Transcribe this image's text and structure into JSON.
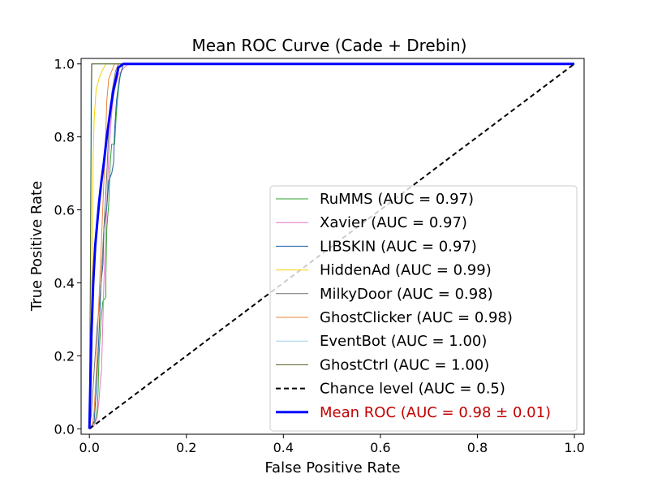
{
  "chart_data": {
    "type": "line",
    "title": "Mean ROC Curve (Cade + Drebin)",
    "xlabel": "False Positive Rate",
    "ylabel": "True Positive Rate",
    "xlim": [
      -0.017,
      1.02
    ],
    "ylim": [
      -0.015,
      1.015
    ],
    "x_ticks": [
      0.0,
      0.2,
      0.4,
      0.6,
      0.8,
      1.0
    ],
    "y_ticks": [
      0.0,
      0.2,
      0.4,
      0.6,
      0.8,
      1.0
    ],
    "x_tick_labels": [
      "0.0",
      "0.2",
      "0.4",
      "0.6",
      "0.8",
      "1.0"
    ],
    "y_tick_labels": [
      "0.0",
      "0.2",
      "0.4",
      "0.6",
      "0.8",
      "1.0"
    ],
    "legend_position": "lower-right",
    "series": [
      {
        "name": "RuMMS (AUC = 0.97)",
        "color": "#2ca02c",
        "width": 1,
        "points": [
          [
            0,
            0
          ],
          [
            0.006,
            0.01
          ],
          [
            0.012,
            0.02
          ],
          [
            0.016,
            0.05
          ],
          [
            0.018,
            0.1
          ],
          [
            0.02,
            0.2
          ],
          [
            0.024,
            0.3
          ],
          [
            0.028,
            0.35
          ],
          [
            0.034,
            0.36
          ],
          [
            0.034,
            0.42
          ],
          [
            0.036,
            0.55
          ],
          [
            0.04,
            0.62
          ],
          [
            0.043,
            0.73
          ],
          [
            0.046,
            0.78
          ],
          [
            0.052,
            0.78
          ],
          [
            0.056,
            0.87
          ],
          [
            0.06,
            0.93
          ],
          [
            0.064,
            0.97
          ],
          [
            0.07,
            1.0
          ],
          [
            1.0,
            1.0
          ]
        ]
      },
      {
        "name": "Xavier (AUC = 0.97)",
        "color": "#e377c2",
        "width": 1,
        "points": [
          [
            0,
            0
          ],
          [
            0.01,
            0.01
          ],
          [
            0.016,
            0.03
          ],
          [
            0.02,
            0.08
          ],
          [
            0.022,
            0.12
          ],
          [
            0.025,
            0.16
          ],
          [
            0.028,
            0.3
          ],
          [
            0.03,
            0.4
          ],
          [
            0.034,
            0.55
          ],
          [
            0.037,
            0.65
          ],
          [
            0.04,
            0.75
          ],
          [
            0.045,
            0.85
          ],
          [
            0.05,
            0.92
          ],
          [
            0.06,
            0.97
          ],
          [
            0.072,
            0.99
          ],
          [
            0.08,
            1.0
          ],
          [
            1.0,
            1.0
          ]
        ]
      },
      {
        "name": "LIBSKIN (AUC = 0.97)",
        "color": "#1f5fa8",
        "width": 1,
        "points": [
          [
            0,
            0
          ],
          [
            0.01,
            0.02
          ],
          [
            0.014,
            0.1
          ],
          [
            0.018,
            0.2
          ],
          [
            0.022,
            0.33
          ],
          [
            0.024,
            0.4
          ],
          [
            0.028,
            0.45
          ],
          [
            0.03,
            0.55
          ],
          [
            0.036,
            0.61
          ],
          [
            0.04,
            0.68
          ],
          [
            0.046,
            0.7
          ],
          [
            0.05,
            0.73
          ],
          [
            0.052,
            0.82
          ],
          [
            0.056,
            0.9
          ],
          [
            0.062,
            0.96
          ],
          [
            0.07,
            1.0
          ],
          [
            1.0,
            1.0
          ]
        ]
      },
      {
        "name": "HiddenAd (AUC = 0.99)",
        "color": "#f5d000",
        "width": 1,
        "points": [
          [
            0,
            0
          ],
          [
            0.002,
            0.1
          ],
          [
            0.004,
            0.3
          ],
          [
            0.006,
            0.55
          ],
          [
            0.008,
            0.75
          ],
          [
            0.01,
            0.85
          ],
          [
            0.014,
            0.93
          ],
          [
            0.02,
            0.96
          ],
          [
            0.026,
            0.98
          ],
          [
            0.034,
            1.0
          ],
          [
            1.0,
            1.0
          ]
        ]
      },
      {
        "name": "MilkyDoor (AUC = 0.98)",
        "color": "#707070",
        "width": 1,
        "points": [
          [
            0,
            0
          ],
          [
            0.004,
            0.04
          ],
          [
            0.008,
            0.12
          ],
          [
            0.012,
            0.2
          ],
          [
            0.016,
            0.28
          ],
          [
            0.02,
            0.33
          ],
          [
            0.024,
            0.4
          ],
          [
            0.028,
            0.5
          ],
          [
            0.032,
            0.6
          ],
          [
            0.036,
            0.7
          ],
          [
            0.04,
            0.82
          ],
          [
            0.046,
            0.92
          ],
          [
            0.054,
            0.98
          ],
          [
            0.06,
            1.0
          ],
          [
            1.0,
            1.0
          ]
        ]
      },
      {
        "name": "GhostClicker (AUC = 0.98)",
        "color": "#e8853a",
        "width": 1,
        "points": [
          [
            0,
            0
          ],
          [
            0.006,
            0.01
          ],
          [
            0.01,
            0.05
          ],
          [
            0.014,
            0.15
          ],
          [
            0.018,
            0.3
          ],
          [
            0.022,
            0.42
          ],
          [
            0.026,
            0.55
          ],
          [
            0.03,
            0.68
          ],
          [
            0.034,
            0.82
          ],
          [
            0.036,
            0.9
          ],
          [
            0.04,
            0.96
          ],
          [
            0.046,
            0.98
          ],
          [
            0.052,
            1.0
          ],
          [
            1.0,
            1.0
          ]
        ]
      },
      {
        "name": "EventBot (AUC = 1.00)",
        "color": "#9ed4ec",
        "width": 1,
        "points": [
          [
            0,
            0
          ],
          [
            0.002,
            0.5
          ],
          [
            0.003,
            0.9
          ],
          [
            0.004,
            1.0
          ],
          [
            1.0,
            1.0
          ]
        ]
      },
      {
        "name": "GhostCtrl (AUC = 1.00)",
        "color": "#4a5a1e",
        "width": 1,
        "points": [
          [
            0,
            0
          ],
          [
            0.002,
            0.4
          ],
          [
            0.004,
            0.9
          ],
          [
            0.005,
            1.0
          ],
          [
            1.0,
            1.0
          ]
        ]
      },
      {
        "name": "Chance level (AUC = 0.5)",
        "color": "#000000",
        "width": 2,
        "dashed": true,
        "points": [
          [
            0,
            0
          ],
          [
            1,
            1
          ]
        ]
      },
      {
        "name": "Mean ROC (AUC = 0.98 ± 0.01)",
        "color": "#0000ff",
        "width": 3,
        "label_color": "#c00000",
        "points": [
          [
            0,
            0
          ],
          [
            0.004,
            0.25
          ],
          [
            0.008,
            0.4
          ],
          [
            0.012,
            0.5
          ],
          [
            0.016,
            0.56
          ],
          [
            0.02,
            0.62
          ],
          [
            0.025,
            0.68
          ],
          [
            0.03,
            0.73
          ],
          [
            0.035,
            0.79
          ],
          [
            0.04,
            0.84
          ],
          [
            0.045,
            0.89
          ],
          [
            0.05,
            0.93
          ],
          [
            0.055,
            0.96
          ],
          [
            0.06,
            0.99
          ],
          [
            0.07,
            1.0
          ],
          [
            1.0,
            1.0
          ]
        ]
      }
    ]
  }
}
